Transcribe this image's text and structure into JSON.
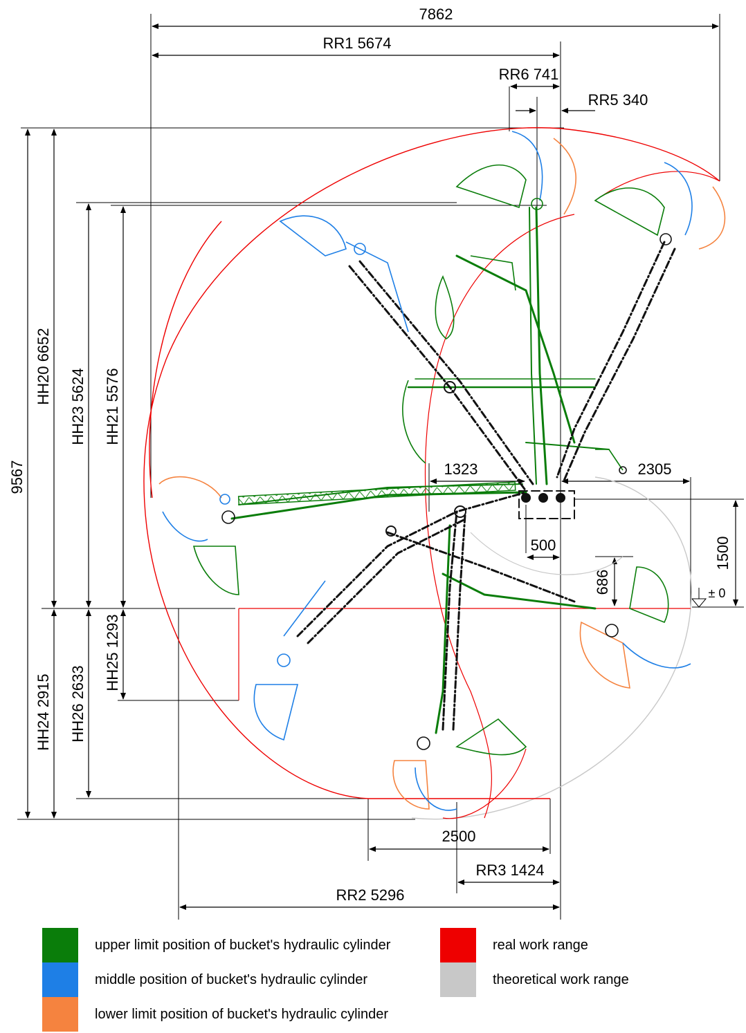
{
  "dimensions": {
    "top_total": "7862",
    "rr1": "RR1 5674",
    "rr6": "RR6 741",
    "rr5": "RR5 340",
    "overall_height": "9567",
    "hh20": "HH20 6652",
    "hh23": "HH23 5624",
    "hh21": "HH21 5576",
    "hh24": "HH24 2915",
    "hh26": "HH26 2633",
    "hh25": "HH25 1293",
    "d1323": "1323",
    "d2305": "2305",
    "d500": "500",
    "d1500": "1500",
    "d686": "686",
    "zero": "± 0",
    "d2500": "2500",
    "rr3": "RR3 1424",
    "rr2": "RR2 5296"
  },
  "colors": {
    "upper": "#0a7d0a",
    "middle": "#1e7fe6",
    "lower": "#f5833f",
    "real": "#ee0000",
    "theoretical": "#c8c8c8",
    "boom": "#111111"
  },
  "legend": {
    "upper": "upper limit position of bucket's hydraulic cylinder",
    "middle": "middle position of bucket's hydraulic cylinder",
    "lower": "lower limit position of bucket's hydraulic cylinder",
    "real": "real work range",
    "theoretical": "theoretical work range"
  }
}
